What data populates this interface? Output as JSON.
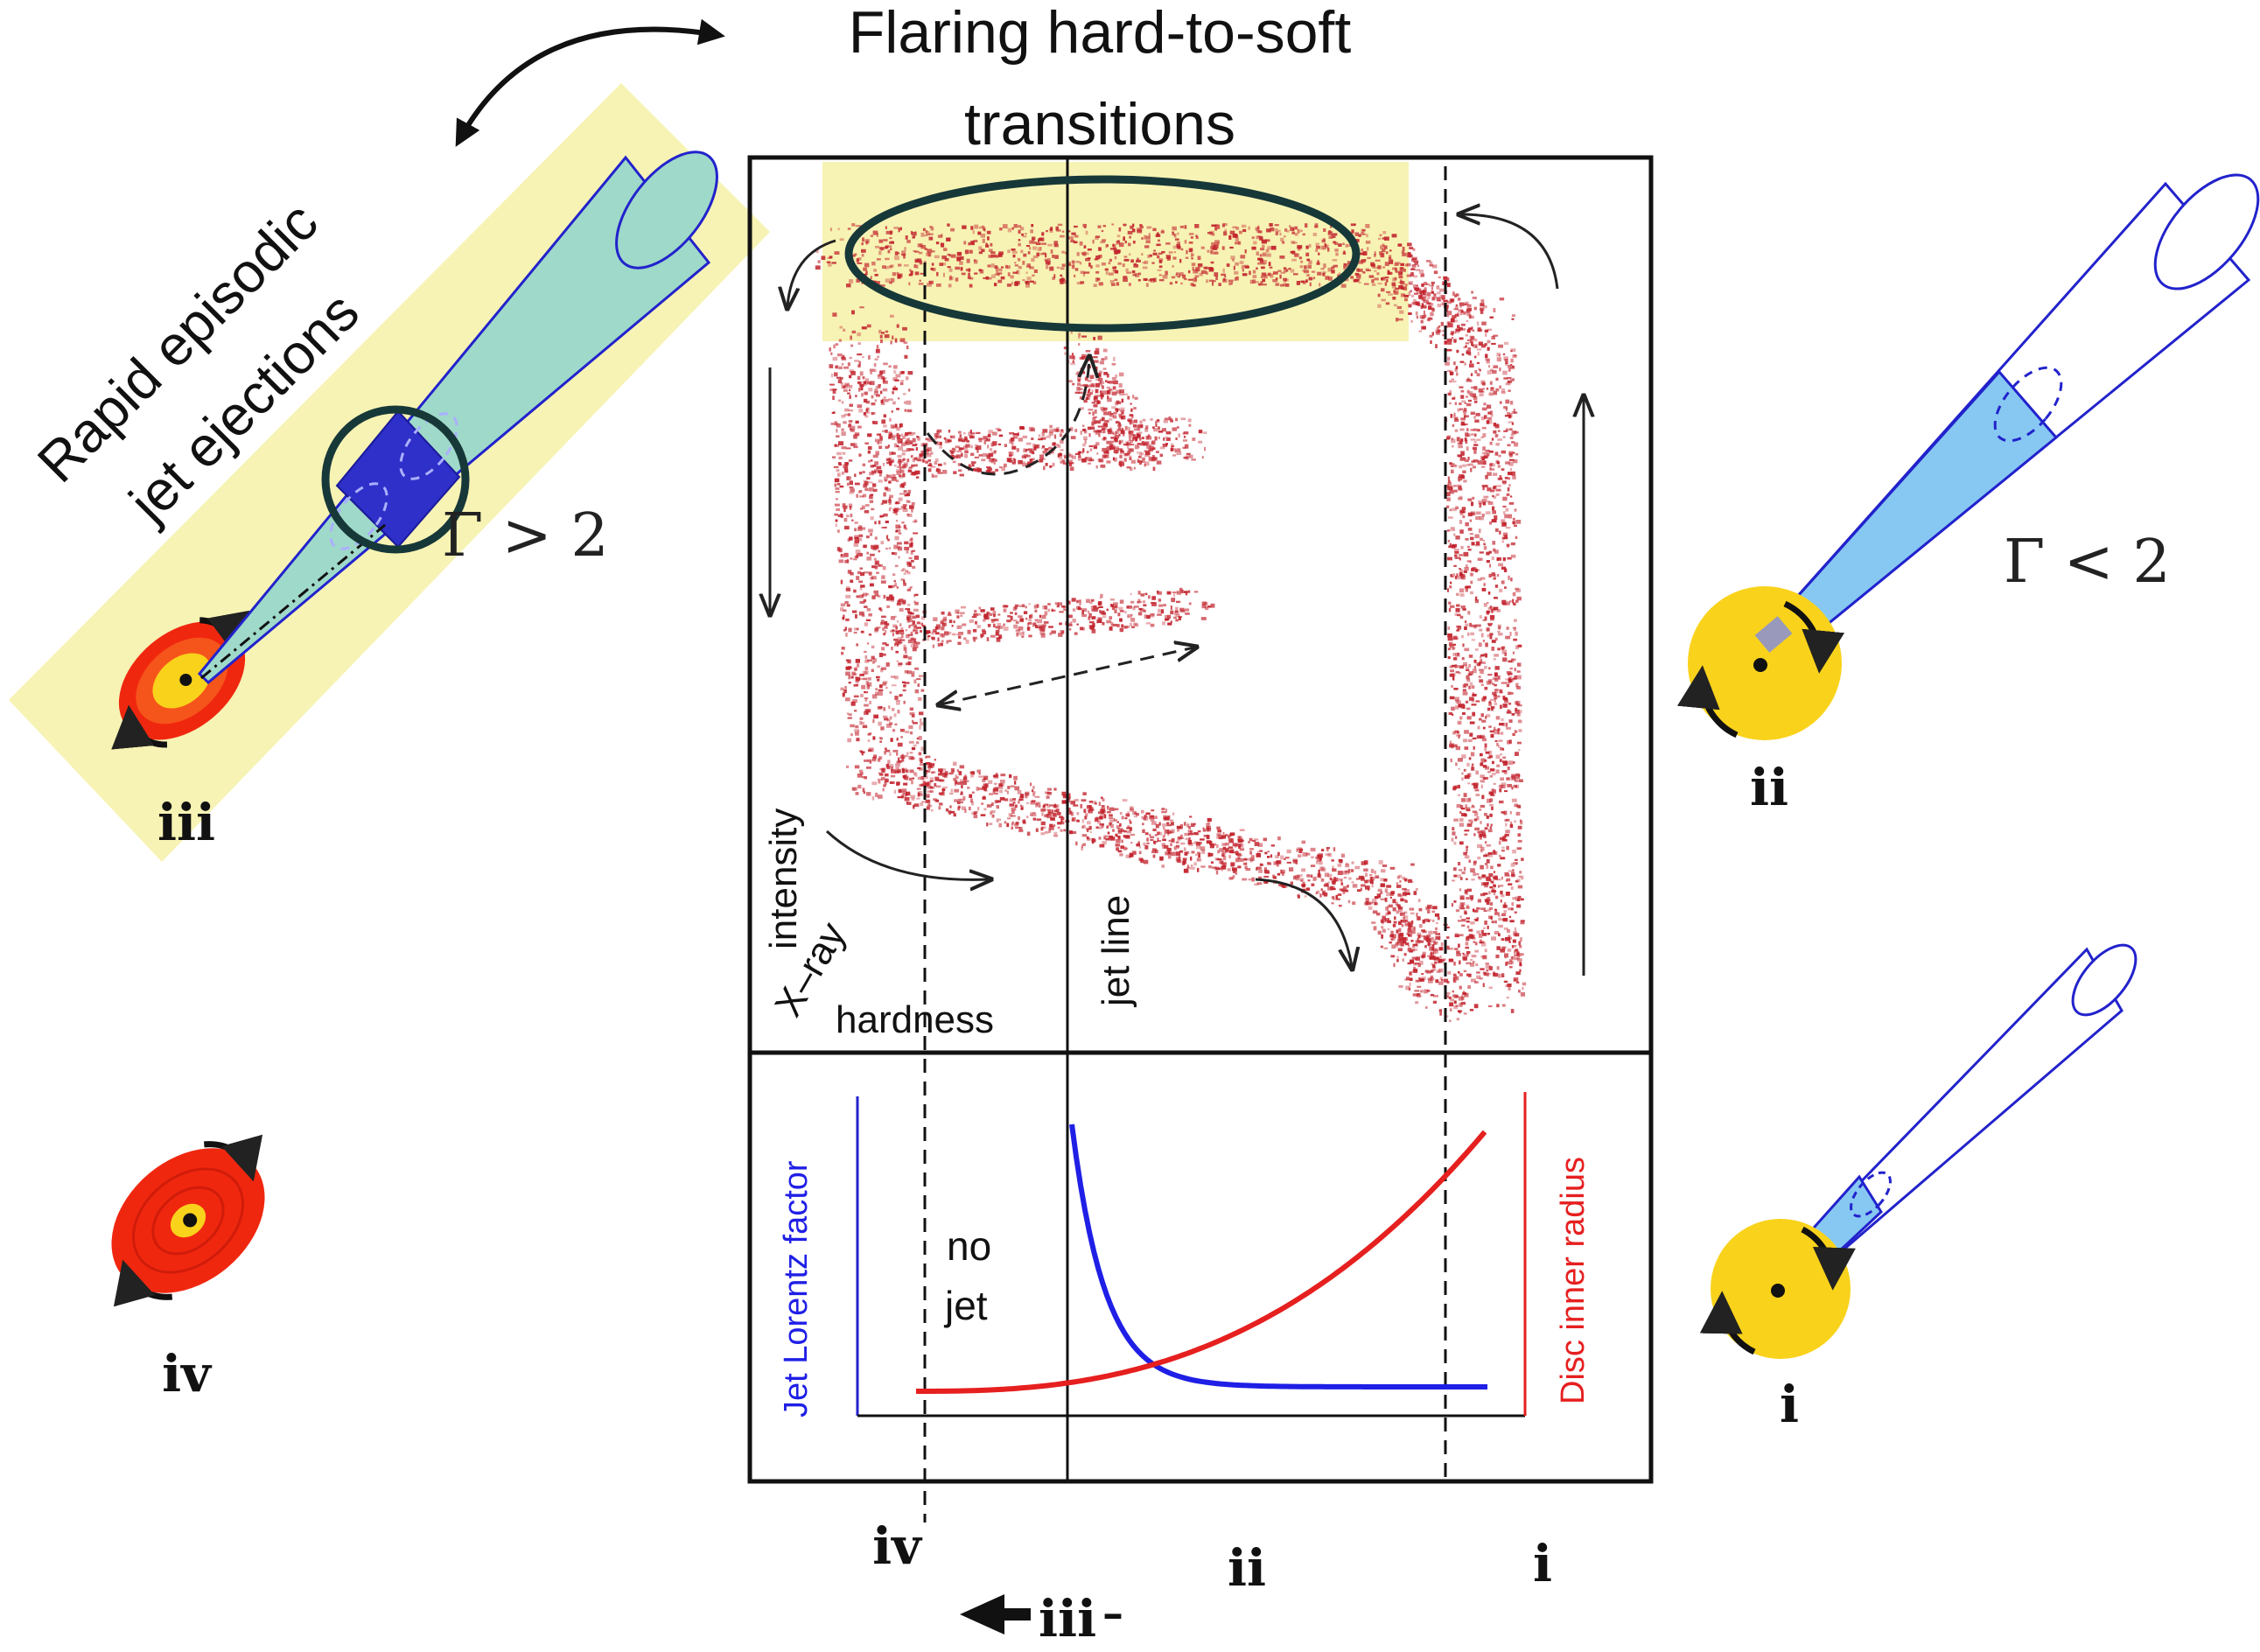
{
  "header": {
    "title_line1": "Flaring hard-to-soft",
    "title_line2": "transitions"
  },
  "left_annotation": {
    "line1": "Rapid episodic",
    "line2": "jet ejections",
    "gamma_label": "Γ > 2"
  },
  "right_annotation": {
    "gamma_label": "Γ < 2"
  },
  "hid_panel": {
    "axis_y_label_1": "intensity",
    "axis_y_label_2": "X–ray",
    "axis_x_label": "hardness",
    "jet_line_label": "jet line"
  },
  "lower_panel": {
    "left_axis_label": "Jet Lorentz factor",
    "right_axis_label": "Disc inner radius",
    "no_jet_1": "no",
    "no_jet_2": "jet",
    "colors": {
      "lorentz": "#1f1fe6",
      "radius": "#e61f1f"
    }
  },
  "state_labels": {
    "left_iii": "iii",
    "left_iv": "iv",
    "right_ii": "ii",
    "right_i": "i",
    "bottom_iv": "iv",
    "bottom_ii": "ii",
    "bottom_i": "i",
    "bottom_iii": "iii",
    "bottom_iii_suffix": "–"
  },
  "colors": {
    "highlight": "#f7f3b4",
    "jet_teal": "#9fd9c9",
    "jet_blue": "#2f2fc9",
    "jet_light_blue": "#86c8f2",
    "disc_yellow": "#f9d21b",
    "disc_red": "#f0270f",
    "disc_orange": "#f5541b",
    "scatter_red": "#c2222c",
    "ellipse": "#173838"
  }
}
